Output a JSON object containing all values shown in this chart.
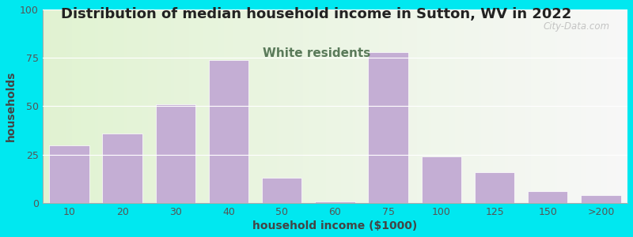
{
  "title": "Distribution of median household income in Sutton, WV in 2022",
  "subtitle": "White residents",
  "xlabel": "household income ($1000)",
  "ylabel": "households",
  "bar_color": "#c4aed4",
  "bar_edge_color": "#ffffff",
  "categories": [
    "10",
    "20",
    "30",
    "40",
    "50",
    "60",
    "75",
    "100",
    "125",
    "150",
    ">200"
  ],
  "values": [
    30,
    36,
    51,
    74,
    13,
    1,
    78,
    24,
    16,
    6,
    4
  ],
  "ylim": [
    0,
    100
  ],
  "yticks": [
    0,
    25,
    50,
    75,
    100
  ],
  "background_outer": "#00e8f0",
  "title_fontsize": 13,
  "subtitle_fontsize": 11,
  "subtitle_color": "#5a7a5a",
  "axis_label_fontsize": 10,
  "tick_fontsize": 9,
  "watermark": "City-Data.com"
}
